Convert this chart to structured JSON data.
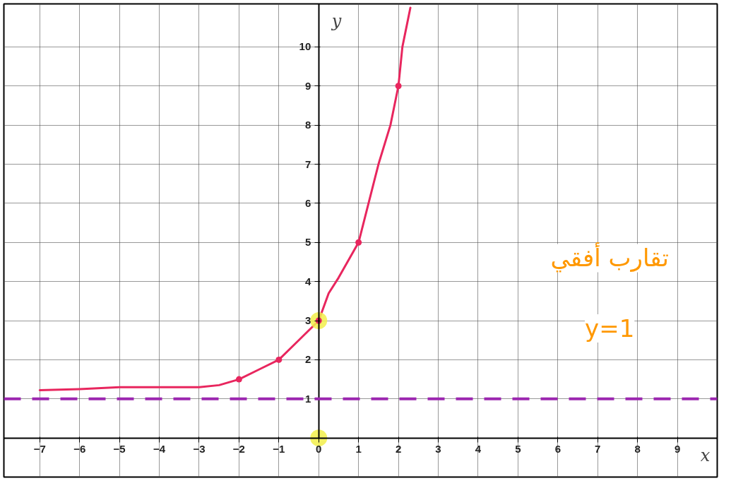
{
  "chart_data": {
    "type": "line",
    "xlabel": "x",
    "ylabel": "y",
    "xlim": [
      -7.9,
      10
    ],
    "ylim": [
      -1,
      11.1
    ],
    "xticks": [
      -7,
      -6,
      -5,
      -4,
      -3,
      -2,
      -1,
      0,
      1,
      2,
      3,
      4,
      5,
      6,
      7,
      8,
      9
    ],
    "yticks": [
      1,
      2,
      3,
      4,
      5,
      6,
      7,
      8,
      9,
      10
    ],
    "grid": true,
    "series": [
      {
        "color": "#e8265e",
        "x": [
          -7,
          -6,
          -5,
          -4,
          -3,
          -2.5,
          -2,
          -1.5,
          -1,
          -0.5,
          0,
          0.25,
          0.5,
          1,
          1.5,
          1.8,
          2,
          2.1,
          2.3
        ],
        "values": [
          1.22,
          1.25,
          1.3,
          1.3,
          1.3,
          1.35,
          1.5,
          1.75,
          2,
          2.5,
          3,
          3.7,
          4.1,
          5,
          7,
          8,
          9,
          10,
          11
        ]
      },
      {
        "type": "scatter",
        "color": "#f2ee4a",
        "x": [
          0,
          0
        ],
        "values": [
          3,
          0
        ]
      },
      {
        "type": "scatter",
        "color": "#e8265e",
        "x": [
          -2,
          -1,
          0,
          1,
          2
        ],
        "values": [
          1.5,
          2,
          3,
          5,
          9
        ]
      }
    ],
    "ref_lines": [
      {
        "axis": "y",
        "value": 1,
        "color": "#9c27b0",
        "line_style": "dashed"
      }
    ],
    "annotations": [
      "تقارب أفقي",
      "y=1"
    ]
  }
}
